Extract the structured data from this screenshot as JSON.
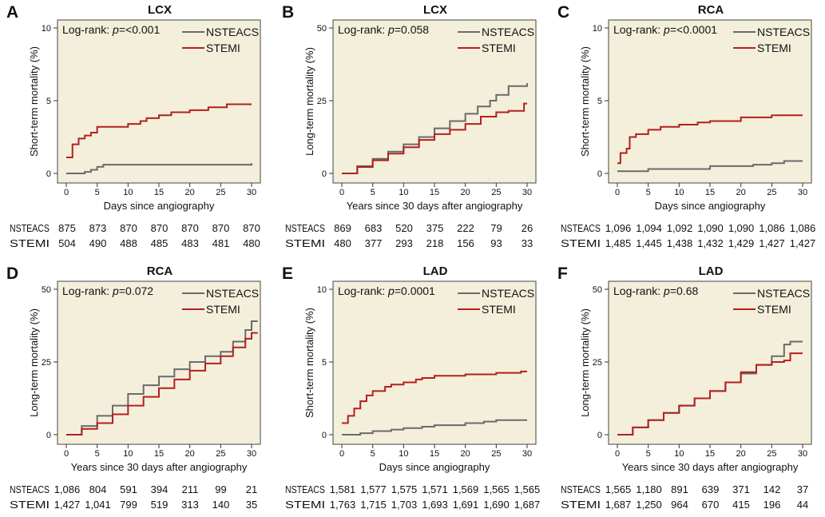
{
  "colors": {
    "background": "#f3efdb",
    "NSTEACS": "#6a6a6a",
    "STEMI": "#b3201e"
  },
  "chart_data": [
    {
      "letter": "A",
      "type": "line",
      "title": "LCX",
      "xlabel": "Days since angiography",
      "ylabel": "Short-term mortality (%)",
      "xlim": [
        0,
        30
      ],
      "ylim": [
        0,
        10
      ],
      "xticks": [
        0,
        5,
        10,
        15,
        20,
        25,
        30
      ],
      "yticks": [
        0,
        5,
        10
      ],
      "annotation": "Log-rank: ",
      "p_label": "p",
      "p_value": "=<0.001",
      "legend": [
        "NSTEACS",
        "STEMI"
      ],
      "series": [
        {
          "name": "NSTEACS",
          "points": [
            [
              0,
              0
            ],
            [
              3,
              0.1
            ],
            [
              4,
              0.25
            ],
            [
              5,
              0.45
            ],
            [
              6,
              0.6
            ],
            [
              29.8,
              0.6
            ],
            [
              30,
              0.7
            ]
          ]
        },
        {
          "name": "STEMI",
          "points": [
            [
              0,
              1.1
            ],
            [
              1,
              2.0
            ],
            [
              2,
              2.4
            ],
            [
              3,
              2.6
            ],
            [
              4,
              2.8
            ],
            [
              5,
              3.2
            ],
            [
              10,
              3.4
            ],
            [
              12,
              3.6
            ],
            [
              13,
              3.8
            ],
            [
              15,
              4.0
            ],
            [
              17,
              4.2
            ],
            [
              20,
              4.35
            ],
            [
              23,
              4.55
            ],
            [
              26,
              4.75
            ],
            [
              30,
              4.75
            ]
          ]
        }
      ],
      "risk_table": {
        "NSTEACS": [
          "875",
          "873",
          "870",
          "870",
          "870",
          "870",
          "870"
        ],
        "STEMI": [
          "504",
          "490",
          "488",
          "485",
          "483",
          "481",
          "480"
        ]
      }
    },
    {
      "letter": "B",
      "type": "line",
      "title": "LCX",
      "xlabel": "Years since 30 days after angiography",
      "ylabel": "Long-term mortality (%)",
      "xlim": [
        0,
        30
      ],
      "ylim": [
        0,
        50
      ],
      "xticks": [
        0,
        5,
        10,
        15,
        20,
        25,
        30
      ],
      "yticks": [
        0,
        25,
        50
      ],
      "annotation": "Log-rank: ",
      "p_label": "p",
      "p_value": "=0.058",
      "legend": [
        "NSTEACS",
        "STEMI"
      ],
      "series": [
        {
          "name": "NSTEACS",
          "points": [
            [
              0,
              0
            ],
            [
              2.5,
              2.5
            ],
            [
              5,
              5
            ],
            [
              7.5,
              7.5
            ],
            [
              10,
              10
            ],
            [
              12.5,
              12.5
            ],
            [
              15,
              15.5
            ],
            [
              17.5,
              18
            ],
            [
              20,
              20.5
            ],
            [
              22,
              23
            ],
            [
              24,
              25
            ],
            [
              25,
              27
            ],
            [
              27,
              30
            ],
            [
              30,
              31
            ]
          ]
        },
        {
          "name": "STEMI",
          "points": [
            [
              0,
              0
            ],
            [
              2.5,
              2.2
            ],
            [
              5,
              4.5
            ],
            [
              7.5,
              6.8
            ],
            [
              10,
              9
            ],
            [
              12.5,
              11.5
            ],
            [
              15,
              13.5
            ],
            [
              17.5,
              15
            ],
            [
              20,
              17
            ],
            [
              22.5,
              19.5
            ],
            [
              25,
              21
            ],
            [
              27,
              21.5
            ],
            [
              29.5,
              24
            ],
            [
              30,
              24
            ]
          ]
        }
      ],
      "risk_table": {
        "NSTEACS": [
          "869",
          "683",
          "520",
          "375",
          "222",
          "79",
          "26"
        ],
        "STEMI": [
          "480",
          "377",
          "293",
          "218",
          "156",
          "93",
          "33"
        ]
      }
    },
    {
      "letter": "C",
      "type": "line",
      "title": "RCA",
      "xlabel": "Days since angiography",
      "ylabel": "Short-term mortality (%)",
      "xlim": [
        0,
        30
      ],
      "ylim": [
        0,
        10
      ],
      "xticks": [
        0,
        5,
        10,
        15,
        20,
        25,
        30
      ],
      "yticks": [
        0,
        5,
        10
      ],
      "annotation": "Log-rank: ",
      "p_label": "p",
      "p_value": "=<0.0001",
      "legend": [
        "NSTEACS",
        "STEMI"
      ],
      "series": [
        {
          "name": "NSTEACS",
          "points": [
            [
              0,
              0.15
            ],
            [
              5,
              0.3
            ],
            [
              15,
              0.5
            ],
            [
              22,
              0.6
            ],
            [
              25,
              0.7
            ],
            [
              27,
              0.85
            ],
            [
              30,
              0.85
            ]
          ]
        },
        {
          "name": "STEMI",
          "points": [
            [
              0,
              0.7
            ],
            [
              0.5,
              1.4
            ],
            [
              1.5,
              1.7
            ],
            [
              2,
              2.5
            ],
            [
              3,
              2.7
            ],
            [
              5,
              3.0
            ],
            [
              7,
              3.2
            ],
            [
              10,
              3.35
            ],
            [
              13,
              3.5
            ],
            [
              15,
              3.6
            ],
            [
              20,
              3.85
            ],
            [
              25,
              4.0
            ],
            [
              30,
              4.0
            ]
          ]
        }
      ],
      "risk_table": {
        "NSTEACS": [
          "1,096",
          "1,094",
          "1,092",
          "1,090",
          "1,090",
          "1,086",
          "1,086"
        ],
        "STEMI": [
          "1,485",
          "1,445",
          "1,438",
          "1,432",
          "1,429",
          "1,427",
          "1,427"
        ]
      }
    },
    {
      "letter": "D",
      "type": "line",
      "title": "RCA",
      "xlabel": "Years since 30 days after angiography",
      "ylabel": "Long-term mortality (%)",
      "xlim": [
        0,
        31
      ],
      "ylim": [
        0,
        50
      ],
      "xticks": [
        0,
        5,
        10,
        15,
        20,
        25,
        30
      ],
      "yticks": [
        0,
        25,
        50
      ],
      "annotation": "Log-rank: ",
      "p_label": "p",
      "p_value": "=0.072",
      "legend": [
        "NSTEACS",
        "STEMI"
      ],
      "series": [
        {
          "name": "NSTEACS",
          "points": [
            [
              0,
              0
            ],
            [
              2.5,
              3
            ],
            [
              5,
              6.5
            ],
            [
              7.5,
              10
            ],
            [
              10,
              14
            ],
            [
              12.5,
              17
            ],
            [
              15,
              20
            ],
            [
              17.5,
              22.5
            ],
            [
              20,
              25
            ],
            [
              22.5,
              27
            ],
            [
              25,
              28.5
            ],
            [
              27,
              32
            ],
            [
              29,
              36
            ],
            [
              30,
              39
            ],
            [
              31,
              39
            ]
          ]
        },
        {
          "name": "STEMI",
          "points": [
            [
              0,
              0
            ],
            [
              2.5,
              2
            ],
            [
              5,
              4
            ],
            [
              7.5,
              7
            ],
            [
              10,
              10
            ],
            [
              12.5,
              13
            ],
            [
              15,
              16
            ],
            [
              17.5,
              19
            ],
            [
              20,
              22
            ],
            [
              22.5,
              24.5
            ],
            [
              25,
              27
            ],
            [
              27,
              30
            ],
            [
              29,
              33
            ],
            [
              30,
              35
            ],
            [
              31,
              35
            ]
          ]
        }
      ],
      "risk_table": {
        "NSTEACS": [
          "1,086",
          "804",
          "591",
          "394",
          "211",
          "99",
          "21"
        ],
        "STEMI": [
          "1,427",
          "1,041",
          "799",
          "519",
          "313",
          "140",
          "35"
        ]
      }
    },
    {
      "letter": "E",
      "type": "line",
      "title": "LAD",
      "xlabel": "Days since angiography",
      "ylabel": "Short-term mortality (%)",
      "xlim": [
        0,
        30
      ],
      "ylim": [
        0,
        10
      ],
      "xticks": [
        0,
        5,
        10,
        15,
        20,
        25,
        30
      ],
      "yticks": [
        0,
        5,
        10
      ],
      "annotation": "Log-rank: ",
      "p_label": "p",
      "p_value": "=0.0001",
      "legend": [
        "NSTEACS",
        "STEMI"
      ],
      "series": [
        {
          "name": "NSTEACS",
          "points": [
            [
              0,
              0
            ],
            [
              3,
              0.1
            ],
            [
              5,
              0.25
            ],
            [
              8,
              0.35
            ],
            [
              10,
              0.45
            ],
            [
              13,
              0.55
            ],
            [
              15,
              0.65
            ],
            [
              20,
              0.8
            ],
            [
              23,
              0.9
            ],
            [
              25,
              1.0
            ],
            [
              30,
              1.0
            ]
          ]
        },
        {
          "name": "STEMI",
          "points": [
            [
              0,
              0.8
            ],
            [
              1,
              1.3
            ],
            [
              2,
              1.8
            ],
            [
              3,
              2.3
            ],
            [
              4,
              2.7
            ],
            [
              5,
              3.0
            ],
            [
              7,
              3.3
            ],
            [
              8,
              3.45
            ],
            [
              10,
              3.6
            ],
            [
              12,
              3.8
            ],
            [
              13,
              3.9
            ],
            [
              15,
              4.05
            ],
            [
              20,
              4.15
            ],
            [
              25,
              4.25
            ],
            [
              29,
              4.35
            ],
            [
              30,
              4.35
            ]
          ]
        }
      ],
      "risk_table": {
        "NSTEACS": [
          "1,581",
          "1,577",
          "1,575",
          "1,571",
          "1,569",
          "1,565",
          "1,565"
        ],
        "STEMI": [
          "1,763",
          "1,715",
          "1,703",
          "1,693",
          "1,691",
          "1,690",
          "1,687"
        ]
      }
    },
    {
      "letter": "F",
      "type": "line",
      "title": "LAD",
      "xlabel": "Years since 30 days after angiography",
      "ylabel": "Long-term mortality (%)",
      "xlim": [
        0,
        30
      ],
      "ylim": [
        0,
        50
      ],
      "xticks": [
        0,
        5,
        10,
        15,
        20,
        25,
        30
      ],
      "yticks": [
        0,
        25,
        50
      ],
      "annotation": "Log-rank: ",
      "p_label": "p",
      "p_value": "=0.68",
      "legend": [
        "NSTEACS",
        "STEMI"
      ],
      "series": [
        {
          "name": "NSTEACS",
          "points": [
            [
              0,
              0
            ],
            [
              2.5,
              2.5
            ],
            [
              5,
              5
            ],
            [
              7.5,
              7.5
            ],
            [
              10,
              10
            ],
            [
              12.5,
              12.5
            ],
            [
              15,
              15
            ],
            [
              17.5,
              18
            ],
            [
              20,
              21
            ],
            [
              22.5,
              24
            ],
            [
              25,
              27
            ],
            [
              27,
              31
            ],
            [
              28,
              32
            ],
            [
              30,
              32
            ]
          ]
        },
        {
          "name": "STEMI",
          "points": [
            [
              0,
              0
            ],
            [
              2.5,
              2.5
            ],
            [
              5,
              5
            ],
            [
              7.5,
              7.5
            ],
            [
              10,
              10
            ],
            [
              12.5,
              12.5
            ],
            [
              15,
              15
            ],
            [
              17.5,
              18
            ],
            [
              20,
              21.5
            ],
            [
              22.5,
              24
            ],
            [
              25,
              25
            ],
            [
              27,
              25.5
            ],
            [
              28,
              28
            ],
            [
              30,
              28
            ]
          ]
        }
      ],
      "risk_table": {
        "NSTEACS": [
          "1,565",
          "1,180",
          "891",
          "639",
          "371",
          "142",
          "37"
        ],
        "STEMI": [
          "1,687",
          "1,250",
          "964",
          "670",
          "415",
          "196",
          "44"
        ]
      }
    }
  ]
}
